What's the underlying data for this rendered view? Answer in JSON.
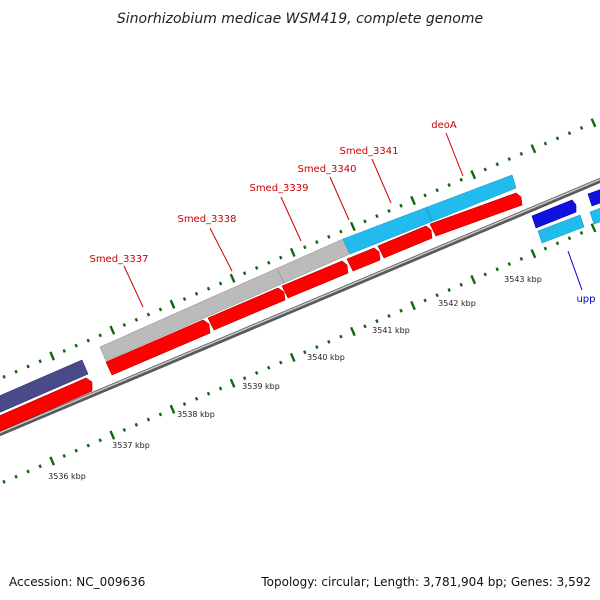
{
  "title": "Sinorhizobium medicae WSM419, complete genome",
  "footer": {
    "accession": "Accession: NC_009636",
    "summary": "Topology: circular; Length: 3,781,904 bp; Genes: 3,592"
  },
  "colors": {
    "cds": "#ff0000",
    "gene_label": "#cc0000",
    "gray_feature": "#bbbbbb",
    "cyan_feature": "#22bbee",
    "navy_feature": "#4a4a8a",
    "blue_feature": "#1111dd",
    "backbone": "#888888",
    "tick": "#116611",
    "upp_label": "#0000cc"
  },
  "gene_labels": [
    {
      "name": "Smed_3337",
      "kind": "cds"
    },
    {
      "name": "Smed_3338",
      "kind": "cds"
    },
    {
      "name": "Smed_3339",
      "kind": "cds"
    },
    {
      "name": "Smed_3340",
      "kind": "cds"
    },
    {
      "name": "Smed_3341",
      "kind": "cds"
    },
    {
      "name": "deoA",
      "kind": "cds"
    },
    {
      "name": "upp",
      "kind": "other"
    }
  ],
  "scale_labels": [
    "3536 kbp",
    "3537 kbp",
    "3538 kbp",
    "3539 kbp",
    "3540 kbp",
    "3541 kbp",
    "3542 kbp",
    "3543 kbp"
  ]
}
